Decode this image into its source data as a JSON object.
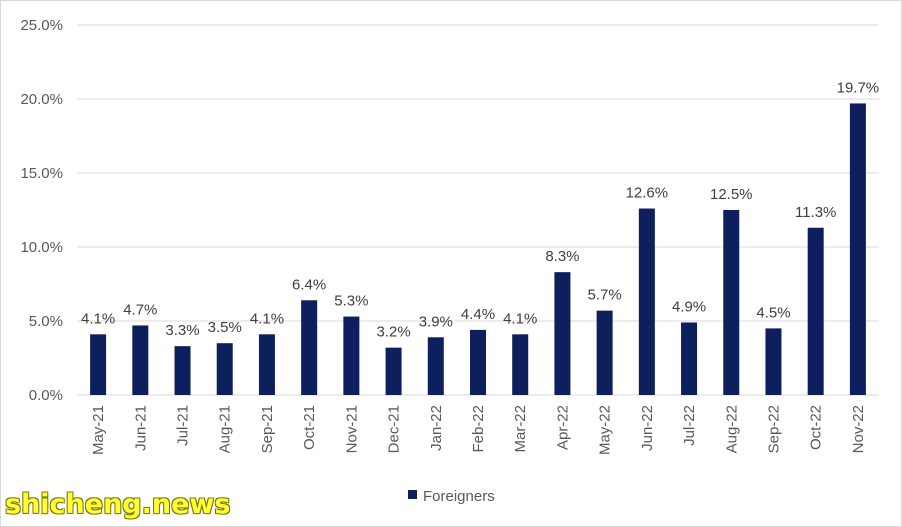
{
  "chart_data": {
    "type": "bar",
    "categories": [
      "May-21",
      "Jun-21",
      "Jul-21",
      "Aug-21",
      "Sep-21",
      "Oct-21",
      "Nov-21",
      "Dec-21",
      "Jan-22",
      "Feb-22",
      "Mar-22",
      "Apr-22",
      "May-22",
      "Jun-22",
      "Jul-22",
      "Aug-22",
      "Sep-22",
      "Oct-22",
      "Nov-22"
    ],
    "series": [
      {
        "name": "Foreigners",
        "values": [
          4.1,
          4.7,
          3.3,
          3.5,
          4.1,
          6.4,
          5.3,
          3.2,
          3.9,
          4.4,
          4.1,
          8.3,
          5.7,
          12.6,
          4.9,
          12.5,
          4.5,
          11.3,
          19.7
        ],
        "data_labels": [
          "4.1%",
          "4.7%",
          "3.3%",
          "3.5%",
          "4.1%",
          "6.4%",
          "5.3%",
          "3.2%",
          "3.9%",
          "4.4%",
          "4.1%",
          "8.3%",
          "5.7%",
          "12.6%",
          "4.9%",
          "12.5%",
          "4.5%",
          "11.3%",
          "19.7%"
        ],
        "color": "#0d1f5c"
      }
    ],
    "ylim": [
      0,
      25
    ],
    "y_ticks": [
      0,
      5,
      10,
      15,
      20,
      25
    ],
    "y_tick_labels": [
      "0.0%",
      "5.0%",
      "10.0%",
      "15.0%",
      "20.0%",
      "25.0%"
    ],
    "grid": true,
    "legend_position": "bottom"
  },
  "watermark": "shicheng.news",
  "colors": {
    "bar": "#0d1f5c",
    "grid": "#d9d9d9",
    "watermark": "#ffff33"
  }
}
